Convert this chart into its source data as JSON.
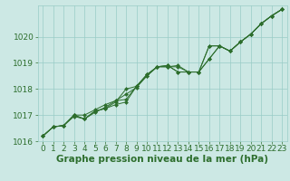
{
  "bg_color": "#cce8e4",
  "grid_color": "#99ccc6",
  "line_color": "#2d6e2d",
  "marker_color": "#2d6e2d",
  "xlabel": "Graphe pression niveau de la mer (hPa)",
  "ylim": [
    1016.0,
    1021.2
  ],
  "xlim": [
    -0.5,
    23.5
  ],
  "yticks": [
    1016,
    1017,
    1018,
    1019,
    1020
  ],
  "xticks": [
    0,
    1,
    2,
    3,
    4,
    5,
    6,
    7,
    8,
    9,
    10,
    11,
    12,
    13,
    14,
    15,
    16,
    17,
    18,
    19,
    20,
    21,
    22,
    23
  ],
  "series": [
    [
      1016.2,
      1016.55,
      1016.6,
      1016.95,
      1016.85,
      1017.1,
      1017.3,
      1017.55,
      1017.8,
      1018.05,
      1018.5,
      1018.85,
      1018.85,
      1018.9,
      1018.65,
      1018.65,
      1019.65,
      1019.65,
      1019.45,
      1019.8,
      1020.1,
      1020.5,
      1020.8,
      1021.05
    ],
    [
      1016.2,
      1016.55,
      1016.6,
      1017.0,
      1016.85,
      1017.15,
      1017.25,
      1017.4,
      1017.5,
      1018.1,
      1018.55,
      1018.85,
      1018.9,
      1018.65,
      1018.65,
      1018.65,
      1019.15,
      1019.65,
      1019.45,
      1019.8,
      1020.1,
      1020.5,
      1020.8,
      1021.05
    ],
    [
      1016.2,
      1016.55,
      1016.6,
      1017.0,
      1017.0,
      1017.2,
      1017.4,
      1017.55,
      1017.6,
      1018.1,
      1018.5,
      1018.85,
      1018.85,
      1018.85,
      1018.65,
      1018.65,
      1019.65,
      1019.65,
      1019.45,
      1019.8,
      1020.1,
      1020.5,
      1020.8,
      1021.05
    ],
    [
      1016.2,
      1016.55,
      1016.6,
      1017.0,
      1016.85,
      1017.15,
      1017.25,
      1017.5,
      1018.0,
      1018.1,
      1018.55,
      1018.85,
      1018.9,
      1018.65,
      1018.65,
      1018.65,
      1019.15,
      1019.65,
      1019.45,
      1019.8,
      1020.1,
      1020.5,
      1020.8,
      1021.05
    ]
  ],
  "tick_fontsize": 6.5,
  "xlabel_fontsize": 7.5,
  "linewidth": 0.7,
  "markersize": 2.0
}
